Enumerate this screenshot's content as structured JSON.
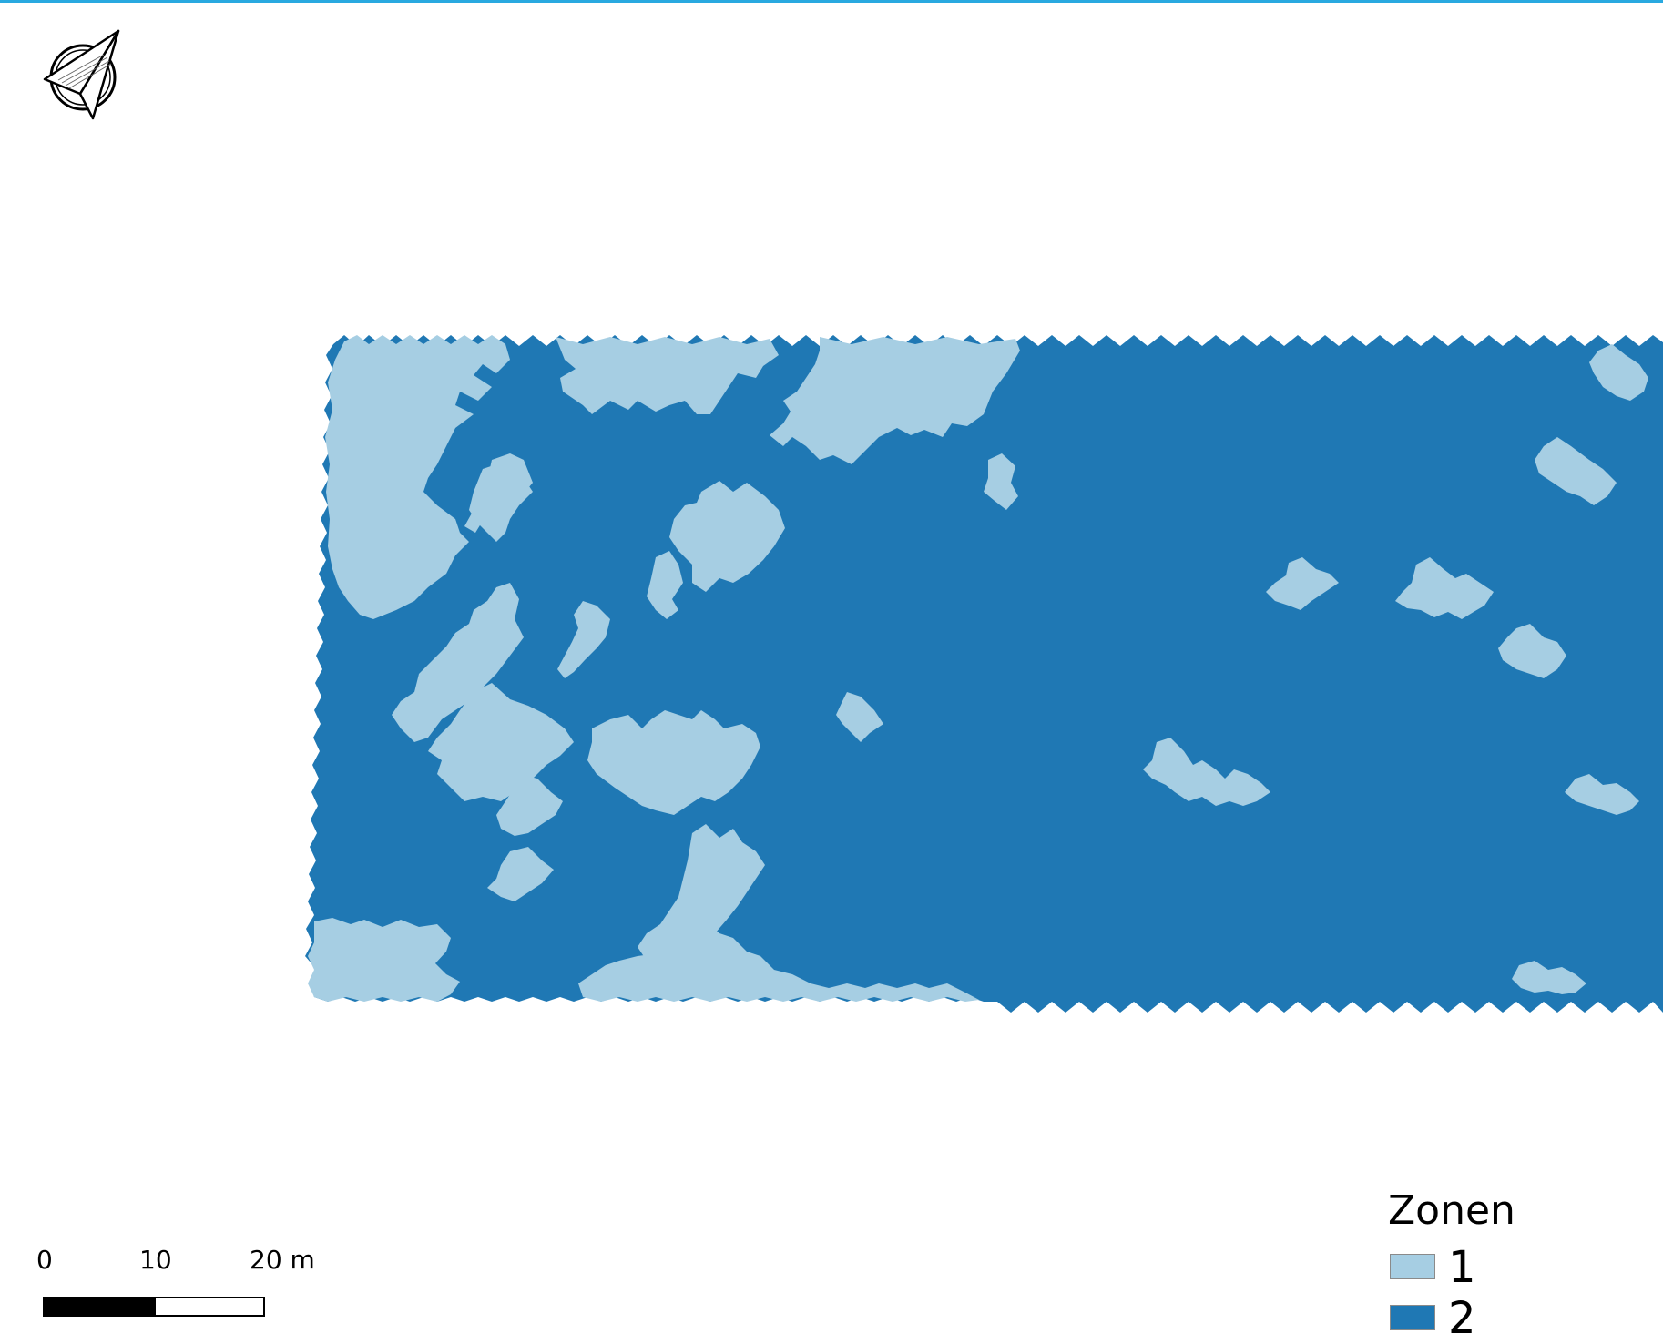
{
  "map": {
    "scale": {
      "labels": [
        "0",
        "10",
        "20 m"
      ]
    },
    "legend": {
      "title": "Zonen",
      "items": [
        {
          "label": "1",
          "color": "#a6cee3"
        },
        {
          "label": "2",
          "color": "#1f78b4"
        }
      ]
    },
    "north_arrow_icon": "compass-north-arrow-icon"
  }
}
